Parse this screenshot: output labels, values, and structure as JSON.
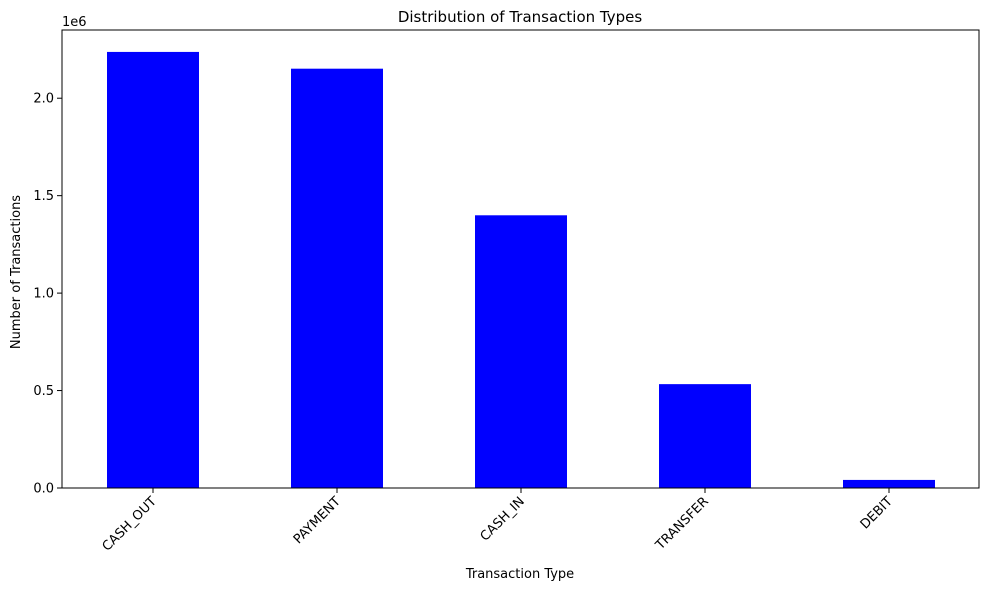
{
  "chart_data": {
    "type": "bar",
    "title": "Distribution of Transaction Types",
    "xlabel": "Transaction Type",
    "ylabel": "Number of Transactions",
    "y_offset_label": "1e6",
    "categories": [
      "CASH_OUT",
      "PAYMENT",
      "CASH_IN",
      "TRANSFER",
      "DEBIT"
    ],
    "values": [
      2237500,
      2151495,
      1399284,
      532909,
      41432
    ],
    "ylim": [
      0,
      2350000
    ],
    "yticks": [
      0,
      500000,
      1000000,
      1500000,
      2000000
    ],
    "ytick_labels": [
      "0.0",
      "0.5",
      "1.0",
      "1.5",
      "2.0"
    ],
    "bar_color": "#0000ff",
    "grid": false,
    "legend": "none"
  }
}
